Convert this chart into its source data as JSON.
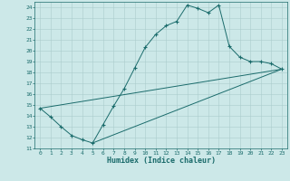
{
  "xlabel": "Humidex (Indice chaleur)",
  "background_color": "#cce8e8",
  "grid_color": "#aacccc",
  "line_color": "#1a6b6b",
  "xlim": [
    -0.5,
    23.5
  ],
  "ylim": [
    11,
    24.5
  ],
  "xticks": [
    0,
    1,
    2,
    3,
    4,
    5,
    6,
    7,
    8,
    9,
    10,
    11,
    12,
    13,
    14,
    15,
    16,
    17,
    18,
    19,
    20,
    21,
    22,
    23
  ],
  "yticks": [
    11,
    12,
    13,
    14,
    15,
    16,
    17,
    18,
    19,
    20,
    21,
    22,
    23,
    24
  ],
  "main_x": [
    0,
    1,
    2,
    3,
    4,
    5,
    6,
    7,
    8,
    9,
    10,
    11,
    12,
    13,
    14,
    15,
    16,
    17,
    18,
    19,
    20,
    21,
    22,
    23
  ],
  "main_y": [
    14.7,
    13.9,
    13.0,
    12.2,
    11.8,
    11.5,
    13.2,
    14.9,
    16.5,
    18.4,
    20.3,
    21.5,
    22.3,
    22.7,
    24.2,
    23.9,
    23.5,
    24.2,
    20.4,
    19.4,
    19.0,
    19.0,
    18.8,
    18.3
  ],
  "line2_x": [
    0,
    23
  ],
  "line2_y": [
    14.7,
    18.3
  ],
  "line3_x": [
    5,
    23
  ],
  "line3_y": [
    11.5,
    18.3
  ],
  "tick_fontsize": 4.5,
  "xlabel_fontsize": 6.0
}
